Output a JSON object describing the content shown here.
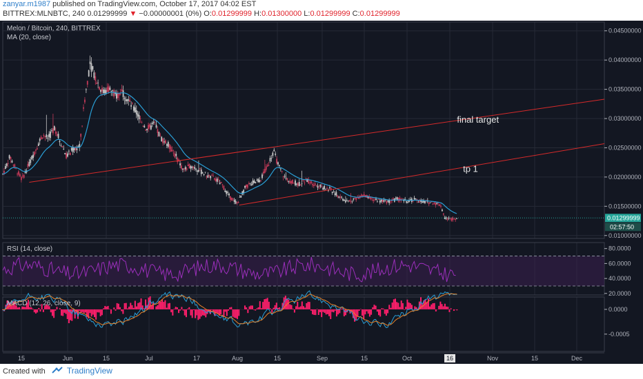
{
  "header": {
    "author": "zanyar.m1987",
    "published": "published on TradingView.com, October 17, 2017 04:02 EST",
    "symbol": "BITTREX:MLNBTC, 240",
    "last": "0.01299999",
    "change": "−0.00000001 (0%)",
    "o_label": "O:",
    "o_val": "0.01299999",
    "h_label": "H:",
    "h_val": "0.01300000",
    "l_label": "L:",
    "l_val": "0.01299999",
    "c_label": "C:",
    "c_val": "0.01299999"
  },
  "footer": {
    "created": "Created with",
    "brand": "TradingView"
  },
  "colors": {
    "bg": "#131722",
    "grid": "#262a36",
    "border": "#3a3e4a",
    "text": "#b2b5be",
    "up": "#c9c9c9",
    "down": "#c43a58",
    "ma": "#2a9fd6",
    "trend": "#d62a2a",
    "rsi": "#9c2fbc",
    "macd": "#2a9fd6",
    "signal": "#e8832a",
    "hist": "#ff1f6b",
    "price": "#26a69a"
  },
  "chart_data": {
    "type": "candlestick",
    "title": "Melon / Bitcoin, 240, BITTREX",
    "indicator": "MA (20, close)",
    "ylim": [
      0.0095,
      0.0465
    ],
    "yticks": [
      "0.04500000",
      "0.04000000",
      "0.03500000",
      "0.03000000",
      "0.02500000",
      "0.02000000",
      "0.01500000",
      "0.01000000"
    ],
    "ytick_values": [
      0.045,
      0.04,
      0.035,
      0.03,
      0.025,
      0.02,
      0.015,
      0.01
    ],
    "last_price_label": "0.01299999",
    "last_price": 0.01299999,
    "countdown": "02:57:50",
    "xticks": [
      "15",
      "Jun",
      "15",
      "Jul",
      "17",
      "Aug",
      "15",
      "Sep",
      "15",
      "Oct",
      "16",
      "Nov",
      "15",
      "Dec"
    ],
    "price_path": [
      [
        0,
        0.0205
      ],
      [
        0.012,
        0.0235
      ],
      [
        0.022,
        0.0213
      ],
      [
        0.032,
        0.0196
      ],
      [
        0.042,
        0.0218
      ],
      [
        0.055,
        0.0248
      ],
      [
        0.066,
        0.0272
      ],
      [
        0.076,
        0.0266
      ],
      [
        0.086,
        0.0285
      ],
      [
        0.096,
        0.026
      ],
      [
        0.106,
        0.0236
      ],
      [
        0.118,
        0.0248
      ],
      [
        0.128,
        0.0252
      ],
      [
        0.136,
        0.033
      ],
      [
        0.145,
        0.0395
      ],
      [
        0.155,
        0.0368
      ],
      [
        0.166,
        0.0345
      ],
      [
        0.176,
        0.0352
      ],
      [
        0.188,
        0.0338
      ],
      [
        0.198,
        0.0348
      ],
      [
        0.21,
        0.0328
      ],
      [
        0.222,
        0.031
      ],
      [
        0.232,
        0.0292
      ],
      [
        0.24,
        0.0282
      ],
      [
        0.252,
        0.029
      ],
      [
        0.262,
        0.0268
      ],
      [
        0.275,
        0.0255
      ],
      [
        0.288,
        0.0235
      ],
      [
        0.3,
        0.0212
      ],
      [
        0.314,
        0.022
      ],
      [
        0.326,
        0.0212
      ],
      [
        0.34,
        0.0202
      ],
      [
        0.352,
        0.0198
      ],
      [
        0.364,
        0.0187
      ],
      [
        0.378,
        0.0165
      ],
      [
        0.39,
        0.0155
      ],
      [
        0.403,
        0.0182
      ],
      [
        0.415,
        0.019
      ],
      [
        0.428,
        0.0195
      ],
      [
        0.44,
        0.0218
      ],
      [
        0.45,
        0.0245
      ],
      [
        0.458,
        0.022
      ],
      [
        0.468,
        0.02
      ],
      [
        0.48,
        0.0192
      ],
      [
        0.492,
        0.0188
      ],
      [
        0.505,
        0.0195
      ],
      [
        0.518,
        0.0188
      ],
      [
        0.53,
        0.0183
      ],
      [
        0.545,
        0.0178
      ],
      [
        0.558,
        0.0168
      ],
      [
        0.572,
        0.0158
      ],
      [
        0.585,
        0.0162
      ],
      [
        0.598,
        0.017
      ],
      [
        0.61,
        0.0163
      ],
      [
        0.625,
        0.016
      ],
      [
        0.64,
        0.0158
      ],
      [
        0.655,
        0.0162
      ],
      [
        0.67,
        0.0159
      ],
      [
        0.685,
        0.0161
      ],
      [
        0.7,
        0.0158
      ],
      [
        0.715,
        0.0156
      ],
      [
        0.728,
        0.0152
      ],
      [
        0.735,
        0.013
      ],
      [
        0.745,
        0.0128
      ],
      [
        0.755,
        0.013
      ]
    ],
    "trendlines": [
      {
        "name": "final target",
        "from": [
          0.044,
          0.0191
        ],
        "to": [
          1.0,
          0.0333
        ]
      },
      {
        "name": "tp 1",
        "from": [
          0.393,
          0.0152
        ],
        "to": [
          1.0,
          0.0257
        ]
      }
    ],
    "annotations": [
      {
        "text": "final target",
        "at": [
          0.755,
          0.0293
        ]
      },
      {
        "text": "tp 1",
        "at": [
          0.765,
          0.0209
        ]
      }
    ]
  },
  "rsi": {
    "label": "RSI (14, close)",
    "yticks": [
      "80.0000",
      "60.0000",
      "40.0000",
      "20.0000"
    ],
    "ytick_values": [
      80,
      60,
      40,
      20
    ],
    "bands": [
      70,
      30
    ],
    "ylim": [
      18,
      88
    ]
  },
  "macd": {
    "label": "MACD (12, 26, close, 9)",
    "yticks": [
      "0.0000",
      "-0.0005"
    ],
    "ytick_values": [
      0,
      -0.0005
    ],
    "ylim": [
      -0.00085,
      0.00025
    ]
  }
}
